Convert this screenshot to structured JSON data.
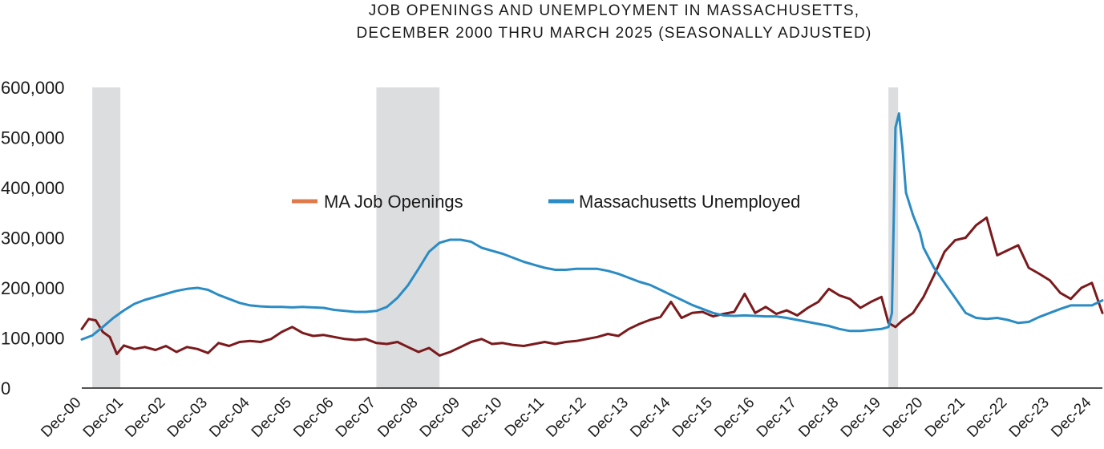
{
  "chart_data": {
    "type": "line",
    "title_line1": "JOB OPENINGS AND UNEMPLOYMENT IN MASSACHUSETTS,",
    "title_line2": "DECEMBER 2000 THRU MARCH 2025 (SEASONALLY ADJUSTED)",
    "xlabel": "",
    "ylabel": "",
    "ylim": [
      0,
      600000
    ],
    "xlim": [
      "2000-12",
      "2025-03"
    ],
    "y_ticks": [
      "0",
      "100,000",
      "200,000",
      "300,000",
      "400,000",
      "500,000",
      "600,000"
    ],
    "y_tick_values": [
      0,
      100000,
      200000,
      300000,
      400000,
      500000,
      600000
    ],
    "x_ticks": [
      "Dec-00",
      "Dec-01",
      "Dec-02",
      "Dec-03",
      "Dec-04",
      "Dec-05",
      "Dec-06",
      "Dec-07",
      "Dec-08",
      "Dec-09",
      "Dec-10",
      "Dec-11",
      "Dec-12",
      "Dec-13",
      "Dec-14",
      "Dec-15",
      "Dec-16",
      "Dec-17",
      "Dec-18",
      "Dec-19",
      "Dec-20",
      "Dec-21",
      "Dec-22",
      "Dec-23",
      "Dec-24"
    ],
    "x_tick_dates": [
      "2000-12",
      "2001-12",
      "2002-12",
      "2003-12",
      "2004-12",
      "2005-12",
      "2006-12",
      "2007-12",
      "2008-12",
      "2009-12",
      "2010-12",
      "2011-12",
      "2012-12",
      "2013-12",
      "2014-12",
      "2015-12",
      "2016-12",
      "2017-12",
      "2018-12",
      "2019-12",
      "2020-12",
      "2021-12",
      "2022-12",
      "2023-12",
      "2024-12"
    ],
    "grid": false,
    "legend_position": "center",
    "recession_periods": [
      [
        "2001-03",
        "2001-11"
      ],
      [
        "2007-12",
        "2009-06"
      ],
      [
        "2020-02",
        "2020-04"
      ]
    ],
    "recession_color": "#dcdddf",
    "series": [
      {
        "name": "MA Job Openings",
        "line_color": "#7b1a1c",
        "legend_color": "#e07a4a",
        "points": [
          [
            "2000-12",
            118000
          ],
          [
            "2001-02",
            138000
          ],
          [
            "2001-04",
            135000
          ],
          [
            "2001-06",
            112000
          ],
          [
            "2001-08",
            102000
          ],
          [
            "2001-10",
            68000
          ],
          [
            "2001-12",
            85000
          ],
          [
            "2002-03",
            78000
          ],
          [
            "2002-06",
            82000
          ],
          [
            "2002-09",
            76000
          ],
          [
            "2002-12",
            84000
          ],
          [
            "2003-03",
            72000
          ],
          [
            "2003-06",
            82000
          ],
          [
            "2003-09",
            78000
          ],
          [
            "2003-12",
            70000
          ],
          [
            "2004-03",
            90000
          ],
          [
            "2004-06",
            84000
          ],
          [
            "2004-09",
            92000
          ],
          [
            "2004-12",
            94000
          ],
          [
            "2005-03",
            92000
          ],
          [
            "2005-06",
            98000
          ],
          [
            "2005-09",
            112000
          ],
          [
            "2005-12",
            122000
          ],
          [
            "2006-03",
            110000
          ],
          [
            "2006-06",
            104000
          ],
          [
            "2006-09",
            106000
          ],
          [
            "2006-12",
            102000
          ],
          [
            "2007-03",
            98000
          ],
          [
            "2007-06",
            96000
          ],
          [
            "2007-09",
            98000
          ],
          [
            "2007-12",
            90000
          ],
          [
            "2008-03",
            88000
          ],
          [
            "2008-06",
            92000
          ],
          [
            "2008-09",
            82000
          ],
          [
            "2008-12",
            72000
          ],
          [
            "2009-03",
            80000
          ],
          [
            "2009-06",
            65000
          ],
          [
            "2009-09",
            72000
          ],
          [
            "2009-12",
            82000
          ],
          [
            "2010-03",
            92000
          ],
          [
            "2010-06",
            98000
          ],
          [
            "2010-09",
            88000
          ],
          [
            "2010-12",
            90000
          ],
          [
            "2011-03",
            86000
          ],
          [
            "2011-06",
            84000
          ],
          [
            "2011-09",
            88000
          ],
          [
            "2011-12",
            92000
          ],
          [
            "2012-03",
            88000
          ],
          [
            "2012-06",
            92000
          ],
          [
            "2012-09",
            94000
          ],
          [
            "2012-12",
            98000
          ],
          [
            "2013-03",
            102000
          ],
          [
            "2013-06",
            108000
          ],
          [
            "2013-09",
            104000
          ],
          [
            "2013-12",
            118000
          ],
          [
            "2014-03",
            128000
          ],
          [
            "2014-06",
            136000
          ],
          [
            "2014-09",
            142000
          ],
          [
            "2014-12",
            172000
          ],
          [
            "2015-03",
            140000
          ],
          [
            "2015-06",
            150000
          ],
          [
            "2015-09",
            152000
          ],
          [
            "2015-12",
            143000
          ],
          [
            "2016-03",
            148000
          ],
          [
            "2016-06",
            152000
          ],
          [
            "2016-09",
            188000
          ],
          [
            "2016-12",
            150000
          ],
          [
            "2017-03",
            162000
          ],
          [
            "2017-06",
            148000
          ],
          [
            "2017-09",
            155000
          ],
          [
            "2017-12",
            145000
          ],
          [
            "2018-03",
            160000
          ],
          [
            "2018-06",
            172000
          ],
          [
            "2018-09",
            198000
          ],
          [
            "2018-12",
            185000
          ],
          [
            "2019-03",
            178000
          ],
          [
            "2019-06",
            160000
          ],
          [
            "2019-09",
            172000
          ],
          [
            "2019-12",
            182000
          ],
          [
            "2020-02",
            130000
          ],
          [
            "2020-04",
            122000
          ],
          [
            "2020-06",
            135000
          ],
          [
            "2020-09",
            150000
          ],
          [
            "2020-12",
            182000
          ],
          [
            "2021-03",
            225000
          ],
          [
            "2021-06",
            272000
          ],
          [
            "2021-09",
            295000
          ],
          [
            "2021-12",
            300000
          ],
          [
            "2022-03",
            325000
          ],
          [
            "2022-06",
            340000
          ],
          [
            "2022-09",
            265000
          ],
          [
            "2022-12",
            275000
          ],
          [
            "2023-03",
            285000
          ],
          [
            "2023-06",
            240000
          ],
          [
            "2023-09",
            228000
          ],
          [
            "2023-12",
            215000
          ],
          [
            "2024-03",
            190000
          ],
          [
            "2024-06",
            178000
          ],
          [
            "2024-09",
            200000
          ],
          [
            "2024-12",
            210000
          ],
          [
            "2025-03",
            150000
          ]
        ]
      },
      {
        "name": "Massachusetts Unemployed",
        "line_color": "#2b8cc4",
        "legend_color": "#2b8cc4",
        "points": [
          [
            "2000-12",
            97000
          ],
          [
            "2001-03",
            105000
          ],
          [
            "2001-06",
            122000
          ],
          [
            "2001-09",
            140000
          ],
          [
            "2001-12",
            155000
          ],
          [
            "2002-03",
            168000
          ],
          [
            "2002-06",
            176000
          ],
          [
            "2002-09",
            182000
          ],
          [
            "2002-12",
            188000
          ],
          [
            "2003-03",
            194000
          ],
          [
            "2003-06",
            198000
          ],
          [
            "2003-09",
            200000
          ],
          [
            "2003-12",
            196000
          ],
          [
            "2004-03",
            186000
          ],
          [
            "2004-06",
            178000
          ],
          [
            "2004-09",
            170000
          ],
          [
            "2004-12",
            165000
          ],
          [
            "2005-03",
            163000
          ],
          [
            "2005-06",
            162000
          ],
          [
            "2005-09",
            162000
          ],
          [
            "2005-12",
            161000
          ],
          [
            "2006-03",
            162000
          ],
          [
            "2006-06",
            161000
          ],
          [
            "2006-09",
            160000
          ],
          [
            "2006-12",
            156000
          ],
          [
            "2007-03",
            154000
          ],
          [
            "2007-06",
            152000
          ],
          [
            "2007-09",
            152000
          ],
          [
            "2007-12",
            154000
          ],
          [
            "2008-03",
            162000
          ],
          [
            "2008-06",
            180000
          ],
          [
            "2008-09",
            205000
          ],
          [
            "2008-12",
            238000
          ],
          [
            "2009-03",
            272000
          ],
          [
            "2009-06",
            290000
          ],
          [
            "2009-09",
            296000
          ],
          [
            "2009-12",
            296000
          ],
          [
            "2010-03",
            292000
          ],
          [
            "2010-06",
            280000
          ],
          [
            "2010-09",
            274000
          ],
          [
            "2010-12",
            268000
          ],
          [
            "2011-03",
            260000
          ],
          [
            "2011-06",
            252000
          ],
          [
            "2011-09",
            246000
          ],
          [
            "2011-12",
            240000
          ],
          [
            "2012-03",
            236000
          ],
          [
            "2012-06",
            236000
          ],
          [
            "2012-09",
            238000
          ],
          [
            "2012-12",
            238000
          ],
          [
            "2013-03",
            238000
          ],
          [
            "2013-06",
            234000
          ],
          [
            "2013-09",
            228000
          ],
          [
            "2013-12",
            220000
          ],
          [
            "2014-03",
            212000
          ],
          [
            "2014-06",
            206000
          ],
          [
            "2014-09",
            196000
          ],
          [
            "2014-12",
            186000
          ],
          [
            "2015-03",
            176000
          ],
          [
            "2015-06",
            166000
          ],
          [
            "2015-09",
            158000
          ],
          [
            "2015-12",
            150000
          ],
          [
            "2016-03",
            145000
          ],
          [
            "2016-06",
            144000
          ],
          [
            "2016-09",
            145000
          ],
          [
            "2016-12",
            144000
          ],
          [
            "2017-03",
            143000
          ],
          [
            "2017-06",
            143000
          ],
          [
            "2017-09",
            140000
          ],
          [
            "2017-12",
            136000
          ],
          [
            "2018-03",
            132000
          ],
          [
            "2018-06",
            128000
          ],
          [
            "2018-09",
            124000
          ],
          [
            "2018-12",
            118000
          ],
          [
            "2019-03",
            114000
          ],
          [
            "2019-06",
            114000
          ],
          [
            "2019-09",
            116000
          ],
          [
            "2019-12",
            118000
          ],
          [
            "2020-02",
            122000
          ],
          [
            "2020-03",
            150000
          ],
          [
            "2020-04",
            520000
          ],
          [
            "2020-05",
            548000
          ],
          [
            "2020-06",
            480000
          ],
          [
            "2020-07",
            390000
          ],
          [
            "2020-09",
            345000
          ],
          [
            "2020-11",
            310000
          ],
          [
            "2020-12",
            280000
          ],
          [
            "2021-03",
            240000
          ],
          [
            "2021-06",
            210000
          ],
          [
            "2021-09",
            180000
          ],
          [
            "2021-12",
            150000
          ],
          [
            "2022-03",
            140000
          ],
          [
            "2022-06",
            138000
          ],
          [
            "2022-09",
            140000
          ],
          [
            "2022-12",
            136000
          ],
          [
            "2023-03",
            130000
          ],
          [
            "2023-06",
            132000
          ],
          [
            "2023-09",
            142000
          ],
          [
            "2023-12",
            150000
          ],
          [
            "2024-03",
            158000
          ],
          [
            "2024-06",
            165000
          ],
          [
            "2024-09",
            165000
          ],
          [
            "2024-12",
            165000
          ],
          [
            "2025-03",
            175000
          ]
        ]
      }
    ]
  }
}
